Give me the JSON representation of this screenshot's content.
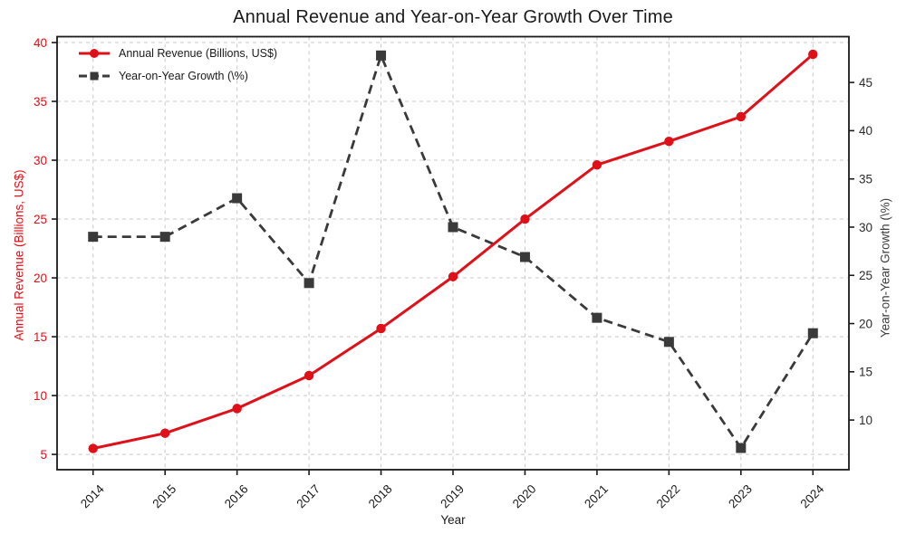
{
  "chart": {
    "title": "Annual Revenue and Year-on-Year Growth Over Time",
    "x_axis_label": "Year",
    "left_axis_label": "Annual Revenue (Billions, US$)",
    "right_axis_label": "Year-on-Year Growth (\\%)",
    "legend": {
      "items": [
        {
          "label": "Annual Revenue (Billions, US$)"
        },
        {
          "label": "Year-on-Year Growth (\\%)"
        }
      ]
    }
  },
  "chart_data": {
    "type": "line",
    "title": "Annual Revenue and Year-on-Year Growth Over Time",
    "xlabel": "Year",
    "x": [
      2014,
      2015,
      2016,
      2017,
      2018,
      2019,
      2020,
      2021,
      2022,
      2023,
      2024
    ],
    "series": [
      {
        "name": "Annual Revenue (Billions, US$)",
        "axis": "left",
        "color": "#e01018",
        "line_style": "solid",
        "marker": "circle",
        "values": [
          5.5,
          6.8,
          8.9,
          11.7,
          15.7,
          20.1,
          25.0,
          29.6,
          31.6,
          33.7,
          39.0
        ]
      },
      {
        "name": "Year-on-Year Growth (\\%)",
        "axis": "right",
        "color": "#3a3a3a",
        "line_style": "dashed",
        "marker": "square",
        "values": [
          29.0,
          29.0,
          33.0,
          24.2,
          47.8,
          30.0,
          26.9,
          20.6,
          18.1,
          7.1,
          19.0
        ]
      }
    ],
    "left_axis": {
      "label": "Annual Revenue (Billions, US$)",
      "ticks": [
        5,
        10,
        15,
        20,
        25,
        30,
        35,
        40
      ],
      "range": [
        3.7,
        40.5
      ],
      "tick_color": "#e01018"
    },
    "right_axis": {
      "label": "Year-on-Year Growth (\\%)",
      "ticks": [
        10,
        15,
        20,
        25,
        30,
        35,
        40,
        45
      ],
      "range": [
        4.85,
        49.75
      ],
      "tick_color": "#2b2b2b"
    },
    "x_axis": {
      "label": "Year",
      "ticks": [
        2014,
        2015,
        2016,
        2017,
        2018,
        2019,
        2020,
        2021,
        2022,
        2023,
        2024
      ],
      "range": [
        2013.5,
        2024.5
      ],
      "tick_color": "#1a1a1a"
    },
    "grid": true,
    "legend_position": "upper left"
  }
}
